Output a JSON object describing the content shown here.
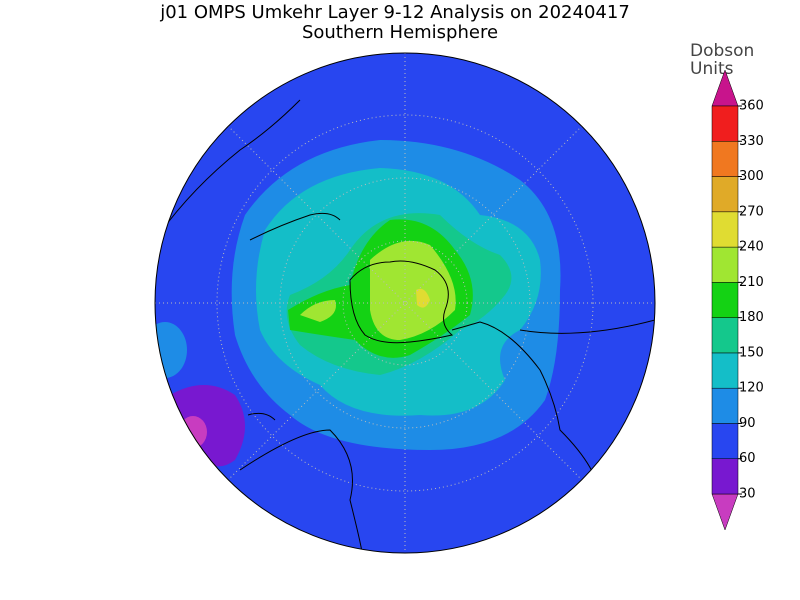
{
  "map": {
    "title": "j01 OMPS Umkehr Layer 9-12 Analysis on 20240417",
    "subtitle": "Southern Hemisphere",
    "colorbar": {
      "label_lines": [
        "Dobson",
        "Units"
      ],
      "ticks": [
        30,
        60,
        90,
        120,
        150,
        180,
        210,
        240,
        270,
        300,
        330,
        360
      ],
      "colors": [
        "#c83cc0",
        "#7818d0",
        "#2846f0",
        "#1e8ce6",
        "#14bec8",
        "#14c88c",
        "#14d214",
        "#a0e632",
        "#e0dc32",
        "#e0aa28",
        "#f07820",
        "#f01e1e",
        "#c8148c"
      ]
    }
  }
}
